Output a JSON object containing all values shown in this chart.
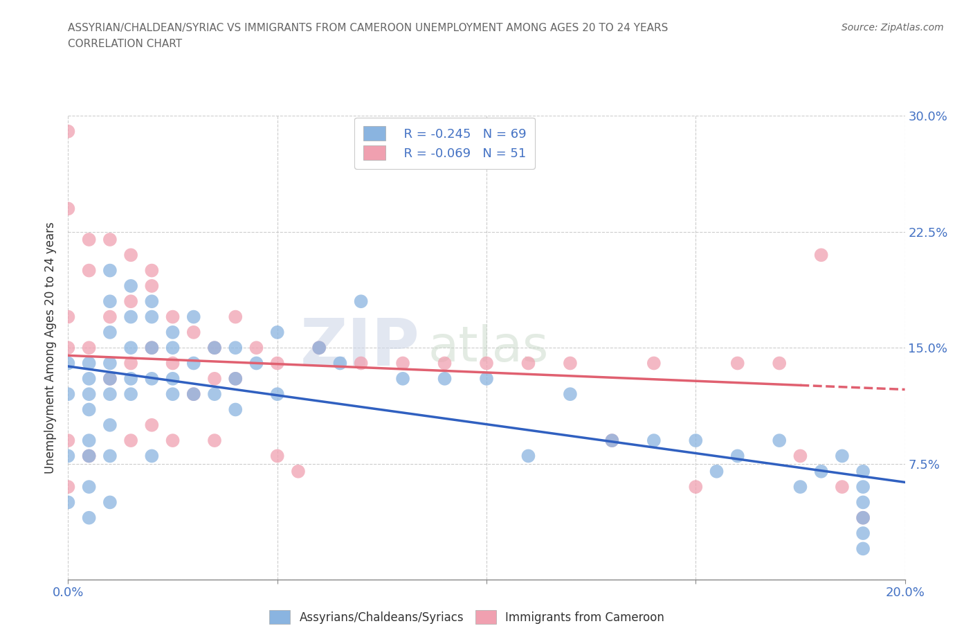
{
  "title_line1": "ASSYRIAN/CHALDEAN/SYRIAC VS IMMIGRANTS FROM CAMEROON UNEMPLOYMENT AMONG AGES 20 TO 24 YEARS",
  "title_line2": "CORRELATION CHART",
  "source_text": "Source: ZipAtlas.com",
  "ylabel": "Unemployment Among Ages 20 to 24 years",
  "xlim": [
    0.0,
    0.2
  ],
  "ylim": [
    0.0,
    0.3
  ],
  "legend_r1": "R = -0.245",
  "legend_n1": "N = 69",
  "legend_r2": "R = -0.069",
  "legend_n2": "N = 51",
  "blue_color": "#8ab4e0",
  "pink_color": "#f0a0b0",
  "blue_line_color": "#3060c0",
  "pink_line_color": "#e06070",
  "grid_color": "#cccccc",
  "background_color": "#ffffff",
  "watermark_zip": "ZIP",
  "watermark_atlas": "atlas",
  "blue_scatter_x": [
    0.0,
    0.0,
    0.0,
    0.0,
    0.005,
    0.005,
    0.005,
    0.005,
    0.005,
    0.005,
    0.005,
    0.005,
    0.01,
    0.01,
    0.01,
    0.01,
    0.01,
    0.01,
    0.01,
    0.01,
    0.01,
    0.015,
    0.015,
    0.015,
    0.015,
    0.015,
    0.02,
    0.02,
    0.02,
    0.02,
    0.02,
    0.025,
    0.025,
    0.025,
    0.025,
    0.03,
    0.03,
    0.03,
    0.035,
    0.035,
    0.04,
    0.04,
    0.04,
    0.045,
    0.05,
    0.05,
    0.06,
    0.065,
    0.07,
    0.08,
    0.09,
    0.1,
    0.11,
    0.12,
    0.13,
    0.14,
    0.15,
    0.155,
    0.16,
    0.17,
    0.175,
    0.18,
    0.185,
    0.19,
    0.19,
    0.19,
    0.19,
    0.19,
    0.19
  ],
  "blue_scatter_y": [
    0.14,
    0.12,
    0.08,
    0.05,
    0.14,
    0.13,
    0.12,
    0.11,
    0.09,
    0.08,
    0.06,
    0.04,
    0.2,
    0.18,
    0.16,
    0.14,
    0.13,
    0.12,
    0.1,
    0.08,
    0.05,
    0.19,
    0.17,
    0.15,
    0.13,
    0.12,
    0.18,
    0.17,
    0.15,
    0.13,
    0.08,
    0.16,
    0.15,
    0.13,
    0.12,
    0.17,
    0.14,
    0.12,
    0.15,
    0.12,
    0.15,
    0.13,
    0.11,
    0.14,
    0.16,
    0.12,
    0.15,
    0.14,
    0.18,
    0.13,
    0.13,
    0.13,
    0.08,
    0.12,
    0.09,
    0.09,
    0.09,
    0.07,
    0.08,
    0.09,
    0.06,
    0.07,
    0.08,
    0.07,
    0.06,
    0.05,
    0.04,
    0.03,
    0.02
  ],
  "pink_scatter_x": [
    0.0,
    0.0,
    0.0,
    0.0,
    0.0,
    0.0,
    0.005,
    0.005,
    0.005,
    0.005,
    0.01,
    0.01,
    0.01,
    0.015,
    0.015,
    0.015,
    0.015,
    0.02,
    0.02,
    0.02,
    0.02,
    0.025,
    0.025,
    0.025,
    0.03,
    0.03,
    0.035,
    0.035,
    0.035,
    0.04,
    0.04,
    0.045,
    0.05,
    0.05,
    0.055,
    0.06,
    0.07,
    0.08,
    0.09,
    0.1,
    0.11,
    0.12,
    0.13,
    0.14,
    0.15,
    0.16,
    0.17,
    0.175,
    0.18,
    0.185,
    0.19
  ],
  "pink_scatter_y": [
    0.29,
    0.24,
    0.17,
    0.15,
    0.09,
    0.06,
    0.22,
    0.2,
    0.15,
    0.08,
    0.22,
    0.17,
    0.13,
    0.21,
    0.18,
    0.14,
    0.09,
    0.2,
    0.19,
    0.15,
    0.1,
    0.17,
    0.14,
    0.09,
    0.16,
    0.12,
    0.15,
    0.13,
    0.09,
    0.17,
    0.13,
    0.15,
    0.14,
    0.08,
    0.07,
    0.15,
    0.14,
    0.14,
    0.14,
    0.14,
    0.14,
    0.14,
    0.09,
    0.14,
    0.06,
    0.14,
    0.14,
    0.08,
    0.21,
    0.06,
    0.04
  ],
  "blue_trend_x0": 0.0,
  "blue_trend_y0": 0.138,
  "blue_trend_x1": 0.2,
  "blue_trend_y1": 0.063,
  "pink_trend_x0": 0.0,
  "pink_trend_y0": 0.145,
  "pink_trend_x1": 0.2,
  "pink_trend_y1": 0.123
}
